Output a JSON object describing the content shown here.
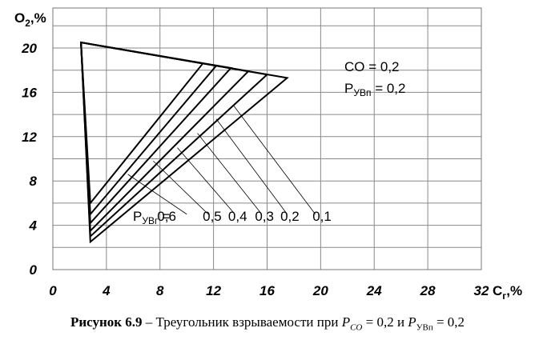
{
  "chart_data": {
    "type": "line",
    "xlabel": "C",
    "xlabel_sub": "г",
    "xlabel_unit": ",%",
    "ylabel": "O",
    "ylabel_sub": "2",
    "ylabel_unit": ",%",
    "xlim": [
      0,
      32
    ],
    "ylim": [
      0,
      20
    ],
    "x_ticks": [
      "0",
      "4",
      "8",
      "12",
      "16",
      "20",
      "24",
      "28",
      "32"
    ],
    "y_ticks": [
      "0",
      "4",
      "8",
      "12",
      "16",
      "20"
    ],
    "x_tick_values": [
      0,
      4,
      8,
      12,
      16,
      20,
      24,
      28,
      32
    ],
    "y_tick_values": [
      0,
      4,
      8,
      12,
      16,
      20
    ],
    "grid": true,
    "annotation_co": "CO  = 0,2",
    "annotation_pyvp": "P",
    "annotation_pyvp_sub": "УВп",
    "annotation_pyvp_val": " = 0,2",
    "series_label_prefix": "P",
    "series_label_prefix_sub": "УВг",
    "series_label_eq": " = ",
    "series": [
      {
        "name": "0,6",
        "apex": [
          2.1,
          20.5
        ],
        "low": [
          2.8,
          6.0
        ],
        "high": [
          11.2,
          18.6
        ],
        "label_x": 8.5
      },
      {
        "name": "0,5",
        "apex": [
          2.1,
          20.5
        ],
        "low": [
          2.8,
          5.0
        ],
        "high": [
          12.2,
          18.4
        ],
        "label_x": 11.9
      },
      {
        "name": "0,4",
        "apex": [
          2.1,
          20.5
        ],
        "low": [
          2.8,
          4.2
        ],
        "high": [
          13.3,
          18.2
        ],
        "label_x": 13.8
      },
      {
        "name": "0,3",
        "apex": [
          2.1,
          20.5
        ],
        "low": [
          2.8,
          3.5
        ],
        "high": [
          14.6,
          17.9
        ],
        "label_x": 15.8
      },
      {
        "name": "0,2",
        "apex": [
          2.1,
          20.5
        ],
        "low": [
          2.8,
          3.0
        ],
        "high": [
          16.0,
          17.6
        ],
        "label_x": 17.7
      },
      {
        "name": "0,1",
        "apex": [
          2.1,
          20.5
        ],
        "low": [
          2.8,
          2.5
        ],
        "high": [
          17.5,
          17.3
        ],
        "label_x": 20.1
      }
    ],
    "leader_lines": [
      {
        "from": [
          5.6,
          8.6
        ],
        "to": [
          10.0,
          5.0
        ]
      },
      {
        "from": [
          7.5,
          9.8
        ],
        "to": [
          11.6,
          5.0
        ]
      },
      {
        "from": [
          9.3,
          11.0
        ],
        "to": [
          13.6,
          5.0
        ]
      },
      {
        "from": [
          10.8,
          12.3
        ],
        "to": [
          15.6,
          5.0
        ]
      },
      {
        "from": [
          12.2,
          13.6
        ],
        "to": [
          17.5,
          5.0
        ]
      },
      {
        "from": [
          13.5,
          14.8
        ],
        "to": [
          19.6,
          5.0
        ]
      }
    ]
  },
  "caption": {
    "bold": "Рисунок 6.9",
    "text": " – Треугольник взрываемости при ",
    "p1": "P",
    "p1_sub": "CO",
    "mid1": " = 0,2 и ",
    "p2": "P",
    "p2_sub": "УВп",
    "end": " = 0,2"
  }
}
